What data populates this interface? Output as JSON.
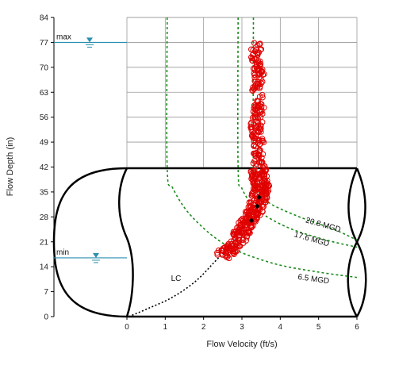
{
  "chart_data": {
    "type": "scatter",
    "xlabel": "Flow Velocity (ft/s)",
    "ylabel": "Flow Depth (in)",
    "x_ticks": [
      "0",
      "1",
      "2",
      "3",
      "4",
      "5",
      "6"
    ],
    "y_ticks": [
      "0",
      "7",
      "14",
      "21",
      "28",
      "35",
      "42",
      "49",
      "56",
      "63",
      "70",
      "77",
      "84"
    ],
    "xlim": [
      0,
      6
    ],
    "ylim": [
      0,
      84
    ],
    "grid": true,
    "pipe_diameter_in": 42,
    "level_markers": [
      {
        "label": "max",
        "depth": 77
      },
      {
        "label": "min",
        "depth": 16.5
      }
    ],
    "iso_flow_curves": [
      {
        "label": "20.8 MGD",
        "color": "#1a8a1a",
        "points": [
          [
            3.3,
            84
          ],
          [
            3.3,
            42
          ],
          [
            3.4,
            36
          ],
          [
            3.7,
            32
          ],
          [
            4.5,
            28
          ],
          [
            5.4,
            24.5
          ],
          [
            6,
            21.5
          ]
        ]
      },
      {
        "label": "17.6 MGD",
        "color": "#1a8a1a",
        "points": [
          [
            2.9,
            84
          ],
          [
            2.9,
            42
          ],
          [
            3.0,
            36
          ],
          [
            3.4,
            30
          ],
          [
            4.2,
            25
          ],
          [
            5.2,
            21.5
          ],
          [
            6,
            19.5
          ]
        ]
      },
      {
        "label": "6.5 MGD",
        "color": "#1a8a1a",
        "points": [
          [
            1.05,
            84
          ],
          [
            1.05,
            42
          ],
          [
            1.2,
            36
          ],
          [
            1.7,
            28
          ],
          [
            2.6,
            20
          ],
          [
            3.8,
            15
          ],
          [
            5,
            12.5
          ],
          [
            6,
            11
          ]
        ]
      }
    ],
    "lc_curve": {
      "label": "LC",
      "color": "#000000",
      "points": [
        [
          0.05,
          0
        ],
        [
          0.6,
          2.5
        ],
        [
          1.2,
          5.5
        ],
        [
          1.8,
          10
        ],
        [
          2.3,
          15.5
        ],
        [
          2.7,
          20
        ],
        [
          3.1,
          26
        ],
        [
          3.4,
          33
        ]
      ]
    },
    "observations": {
      "marker": "open-circle",
      "color": "#e00000",
      "center_line": [
        [
          2.5,
          17
        ],
        [
          2.7,
          19
        ],
        [
          2.9,
          22
        ],
        [
          3.1,
          25.5
        ],
        [
          3.3,
          29
        ],
        [
          3.45,
          33
        ],
        [
          3.5,
          36
        ],
        [
          3.45,
          40
        ],
        [
          3.4,
          43
        ],
        [
          3.45,
          48
        ],
        [
          3.35,
          53
        ],
        [
          3.45,
          58
        ],
        [
          3.4,
          63
        ],
        [
          3.45,
          68
        ],
        [
          3.35,
          73
        ],
        [
          3.4,
          77
        ]
      ],
      "mean_points": [
        [
          3.25,
          27
        ],
        [
          3.4,
          31
        ],
        [
          3.45,
          33.5
        ]
      ]
    }
  }
}
